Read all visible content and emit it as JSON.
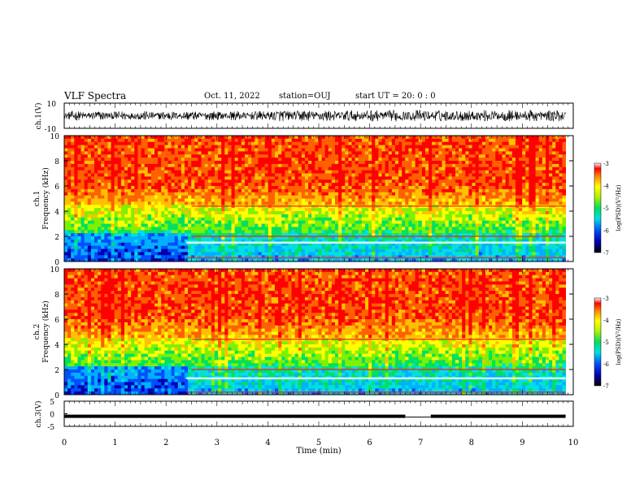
{
  "header": {
    "title": "VLF Spectra",
    "date": "Oct. 11, 2022",
    "station": "station=OUJ",
    "start": "start  UT =   20: 0  : 0"
  },
  "chart_data": [
    {
      "type": "line",
      "ylabel": "ch.1(V)",
      "ylim": [
        -10,
        10
      ],
      "yticks": [
        10,
        -10
      ],
      "xlim": [
        0,
        10
      ],
      "note": "VLF waveform, roughly noise of amplitude ±4 V"
    },
    {
      "type": "heatmap",
      "ylabel_top": "ch.1",
      "ylabel": "Frequency (kHz)",
      "yticks": [
        0,
        2,
        4,
        6,
        8,
        10
      ],
      "ylim": [
        0,
        10
      ],
      "xlim": [
        0,
        10
      ],
      "colorbar": {
        "label": "log(PSD)(V²/Hz)",
        "ticks": [
          -3,
          -4,
          -5,
          -6,
          -7
        ],
        "range": [
          -7,
          -3
        ]
      },
      "lines_khz": [
        4.4,
        2.0,
        1.5,
        0.3
      ]
    },
    {
      "type": "heatmap",
      "ylabel_top": "ch.2",
      "ylabel": "Frequency (kHz)",
      "yticks": [
        0,
        2,
        4,
        6,
        8,
        10
      ],
      "ylim": [
        0,
        10
      ],
      "xlim": [
        0,
        10
      ],
      "colorbar": {
        "label": "log(PSD)(V²/Hz)",
        "ticks": [
          -3,
          -4,
          -5,
          -6,
          -7
        ],
        "range": [
          -7,
          -3
        ]
      },
      "lines_khz": [
        4.4,
        2.0,
        1.3,
        0.2
      ]
    },
    {
      "type": "line",
      "ylabel": "ch.3(V)",
      "ylim": [
        -5,
        5
      ],
      "yticks": [
        5,
        0,
        -5
      ],
      "xlim": [
        0,
        10
      ],
      "note": "near-constant level at about -1 V, gap near 6.7 to 7.2 min"
    }
  ],
  "xaxis": {
    "label": "Time (min)",
    "ticks": [
      "0",
      "1",
      "2",
      "3",
      "4",
      "5",
      "6",
      "7",
      "8",
      "9",
      "10"
    ]
  }
}
